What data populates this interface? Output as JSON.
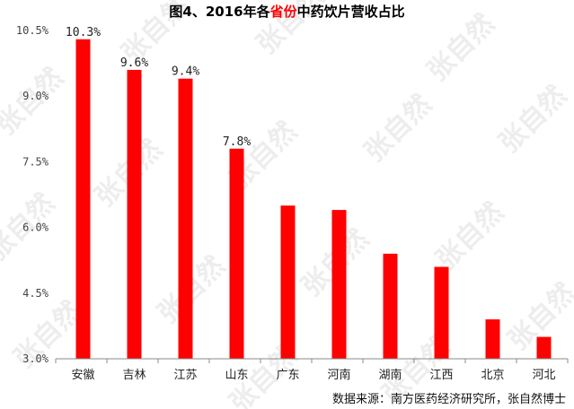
{
  "chart_data": {
    "type": "bar",
    "title_parts": [
      {
        "text": "图4、2016年各",
        "color": "#000000"
      },
      {
        "text": "省份",
        "color": "#ff0000"
      },
      {
        "text": "中药饮片营收占比",
        "color": "#000000"
      }
    ],
    "categories": [
      "安徽",
      "吉林",
      "江苏",
      "山东",
      "广东",
      "河南",
      "湖南",
      "江西",
      "北京",
      "河北"
    ],
    "values": [
      10.3,
      9.6,
      9.4,
      7.8,
      6.5,
      6.4,
      5.4,
      5.1,
      3.9,
      3.5
    ],
    "data_labels": [
      "10.3%",
      "9.6%",
      "9.4%",
      "7.8%",
      "",
      "",
      "",
      "",
      "",
      ""
    ],
    "ylim": [
      3.0,
      10.5
    ],
    "yticks": [
      3.0,
      4.5,
      6.0,
      7.5,
      9.0,
      10.5
    ],
    "ytick_labels": [
      "3.0%",
      "4.5%",
      "6.0%",
      "7.5%",
      "9.0%",
      "10.5%"
    ],
    "bar_color": "#ff0000",
    "grid": false,
    "legend": "none"
  },
  "watermark": "张自然",
  "source": "数据来源：南方医药经济研究所，张自然博士"
}
